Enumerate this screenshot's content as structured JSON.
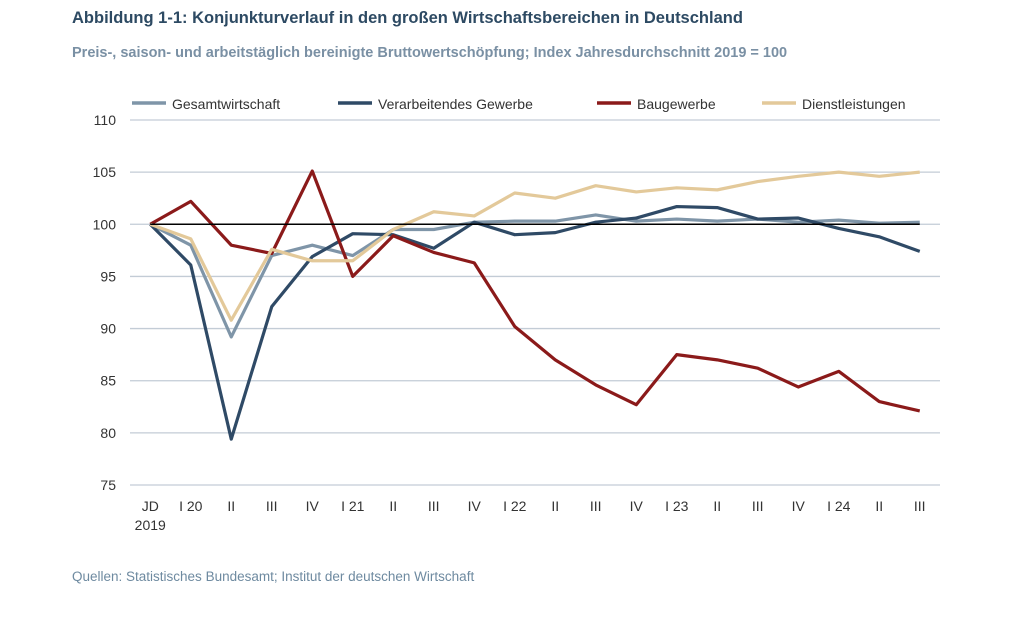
{
  "header": {
    "title": "Abbildung 1-1: Konjunkturverlauf in den großen Wirtschaftsbereichen in Deutschland",
    "subtitle": "Preis-, saison- und arbeitstäglich bereinigte Bruttowertschöpfung; Index Jahresdurchschnitt 2019 = 100"
  },
  "footer": {
    "source": "Quellen: Statistisches Bundesamt; Institut der deutschen Wirtschaft"
  },
  "chart_data": {
    "type": "line",
    "title": "Abbildung 1-1: Konjunkturverlauf in den großen Wirtschaftsbereichen in Deutschland",
    "subtitle": "Preis-, saison- und arbeitstäglich bereinigte Bruttowertschöpfung; Index Jahresdurchschnitt 2019 = 100",
    "categories": [
      "JD 2019",
      "I 20",
      "II",
      "III",
      "IV",
      "I 21",
      "II",
      "III",
      "IV",
      "I 22",
      "II",
      "III",
      "IV",
      "I 23",
      "II",
      "III",
      "IV",
      "I 24",
      "II",
      "III"
    ],
    "ylim": [
      75,
      110
    ],
    "yticks": [
      75,
      80,
      85,
      90,
      95,
      100,
      105,
      110
    ],
    "reference_line": 100,
    "grid": true,
    "legend": "top",
    "series": [
      {
        "name": "Gesamtwirtschaft",
        "color": "#7f95a8",
        "values": [
          100,
          98,
          89.2,
          97,
          98,
          97,
          99.5,
          99.5,
          100.2,
          100.3,
          100.3,
          100.9,
          100.3,
          100.5,
          100.3,
          100.5,
          100.2,
          100.4,
          100.1,
          100.2
        ]
      },
      {
        "name": "Verarbeitendes Gewerbe",
        "color": "#2f4a66",
        "values": [
          100,
          96.1,
          79.4,
          92.1,
          96.9,
          99.1,
          99.0,
          97.7,
          100.2,
          99.0,
          99.2,
          100.2,
          100.6,
          101.7,
          101.6,
          100.5,
          100.6,
          99.6,
          98.8,
          97.4
        ]
      },
      {
        "name": "Baugewerbe",
        "color": "#8b1a1a",
        "values": [
          100,
          102.2,
          98,
          97.2,
          105.1,
          95,
          98.9,
          97.3,
          96.3,
          90.2,
          87,
          84.6,
          82.7,
          87.5,
          87,
          86.2,
          84.4,
          85.9,
          83,
          82.1
        ]
      },
      {
        "name": "Dienstleistungen",
        "color": "#e3c99a",
        "values": [
          100,
          98.6,
          90.8,
          97.6,
          96.5,
          96.5,
          99.5,
          101.2,
          100.8,
          103,
          102.5,
          103.7,
          103.1,
          103.5,
          103.3,
          104.1,
          104.6,
          105,
          104.6,
          105
        ]
      }
    ]
  }
}
